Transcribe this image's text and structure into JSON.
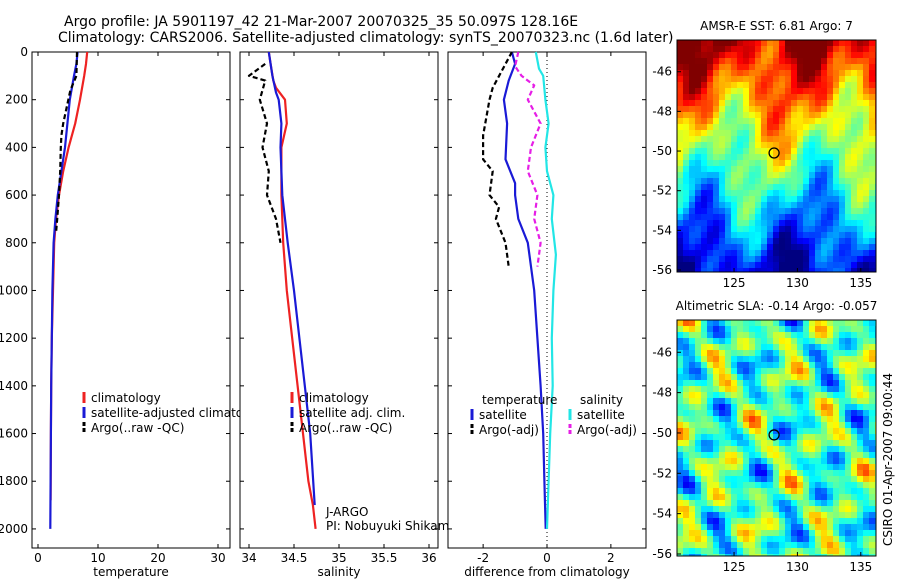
{
  "title_line1": "Argo profile: JA 5901197_42 21-Mar-2007 20070325_35 50.097S 128.16E",
  "title_line2": "Climatology: CARS2006. Satellite-adjusted climatology: synTS_20070323.nc (1.6d later)",
  "credit": "CSIRO 01-Apr-2007 09:00:44",
  "colors": {
    "climatology": "#ee2222",
    "satellite": "#1a1ad6",
    "argo": "#000000",
    "salinity_sat": "#22e6e6",
    "salinity_argo": "#e61ee6"
  },
  "chart_data": [
    {
      "type": "line",
      "xlabel": "temperature",
      "ylabel": "",
      "xlim": [
        -1,
        32
      ],
      "ylim": [
        2080,
        0
      ],
      "y_reversed": true,
      "xticks": [
        0,
        10,
        20,
        30
      ],
      "yticks": [
        0,
        200,
        400,
        600,
        800,
        1000,
        1200,
        1400,
        1600,
        1800,
        2000
      ],
      "legend": [
        "climatology",
        "satellite-adjusted climatology",
        "Argo(..raw -QC)"
      ],
      "series": [
        {
          "name": "climatology",
          "color": "#ee2222",
          "dash": "",
          "x": [
            8.2,
            8.0,
            7.7,
            7.0,
            6.2,
            5.1,
            4.2,
            3.5,
            3.0,
            2.7,
            2.5,
            2.3,
            2.2,
            2.15,
            2.1
          ],
          "y": [
            0,
            50,
            100,
            200,
            300,
            400,
            500,
            600,
            700,
            800,
            1000,
            1200,
            1400,
            1600,
            1880
          ]
        },
        {
          "name": "satellite-adjusted climatology",
          "color": "#1a1ad6",
          "dash": "",
          "x": [
            6.6,
            6.4,
            6.0,
            5.3,
            4.9,
            4.5,
            3.9,
            3.3,
            2.9,
            2.6,
            2.4,
            2.3,
            2.2,
            2.15,
            2.1,
            2.05
          ],
          "y": [
            0,
            50,
            100,
            200,
            300,
            400,
            500,
            600,
            700,
            800,
            1000,
            1200,
            1400,
            1600,
            1800,
            2000
          ]
        },
        {
          "name": "Argo(..raw -QC)",
          "color": "#000000",
          "dash": "5,3",
          "x": [
            6.5,
            6.4,
            5.4,
            4.2,
            3.9,
            3.8,
            3.7,
            3.5,
            3.2,
            3.0
          ],
          "y": [
            0,
            100,
            160,
            300,
            350,
            400,
            500,
            600,
            700,
            760
          ]
        }
      ]
    },
    {
      "type": "line",
      "xlabel": "salinity",
      "ylabel": "",
      "xlim": [
        33.9,
        36.1
      ],
      "ylim": [
        2080,
        0
      ],
      "y_reversed": true,
      "xticks": [
        34,
        34.5,
        35,
        35.5,
        36
      ],
      "yticks": [
        0,
        200,
        400,
        600,
        800,
        1000,
        1200,
        1400,
        1600,
        1800,
        2000
      ],
      "legend": [
        "climatology",
        "satellite adj. clim.",
        "Argo(..raw -QC)"
      ],
      "annotations": [
        "J-ARGO",
        "PI: Nobuyuki Shikama"
      ],
      "series": [
        {
          "name": "climatology",
          "color": "#ee2222",
          "dash": "",
          "x": [
            34.22,
            34.24,
            34.27,
            34.3,
            34.4,
            34.42,
            34.36,
            34.36,
            34.38,
            34.42,
            34.48,
            34.54,
            34.6,
            34.66,
            34.71,
            34.74
          ],
          "y": [
            0,
            50,
            120,
            150,
            200,
            300,
            400,
            600,
            800,
            1000,
            1200,
            1400,
            1600,
            1800,
            1900,
            2000
          ]
        },
        {
          "name": "satellite adj. clim.",
          "color": "#1a1ad6",
          "dash": "",
          "x": [
            34.22,
            34.24,
            34.26,
            34.3,
            34.33,
            34.36,
            34.35,
            34.37,
            34.43,
            34.5,
            34.56,
            34.62,
            34.68,
            34.73
          ],
          "y": [
            0,
            50,
            100,
            170,
            200,
            300,
            400,
            600,
            800,
            1000,
            1200,
            1400,
            1600,
            1900
          ]
        },
        {
          "name": "Argo(..raw -QC)",
          "color": "#000000",
          "dash": "5,3",
          "x": [
            34.18,
            34.0,
            34.18,
            34.12,
            34.2,
            34.15,
            34.22,
            34.2,
            34.3,
            34.35
          ],
          "y": [
            50,
            100,
            120,
            200,
            300,
            400,
            500,
            600,
            700,
            800
          ]
        }
      ]
    },
    {
      "type": "line",
      "xlabel": "difference from climatology",
      "ylabel": "",
      "xlim": [
        -3.1,
        3.1
      ],
      "ylim": [
        2080,
        0
      ],
      "y_reversed": true,
      "xticks": [
        -2,
        0,
        2
      ],
      "yticks": [
        0,
        200,
        400,
        600,
        800,
        1000,
        1200,
        1400,
        1600,
        1800,
        2000
      ],
      "legend": [
        "temperature",
        "satellite",
        "Argo(-adj)",
        "salinity",
        "satellite",
        "Argo(-adj)"
      ],
      "series": [
        {
          "name": "temperature satellite",
          "color": "#1a1ad6",
          "dash": "",
          "x": [
            -1.1,
            -1.0,
            -1.2,
            -1.35,
            -1.25,
            -1.3,
            -1.0,
            -1.0,
            -0.9,
            -0.6,
            -0.5,
            -0.4,
            -0.3,
            -0.2,
            -0.12,
            -0.08,
            -0.04
          ],
          "y": [
            0,
            50,
            120,
            200,
            300,
            450,
            550,
            600,
            700,
            800,
            900,
            1000,
            1200,
            1400,
            1600,
            1800,
            2000
          ]
        },
        {
          "name": "temperature Argo(-adj)",
          "color": "#000000",
          "dash": "5,3",
          "x": [
            -1.1,
            -1.7,
            -1.8,
            -2.0,
            -2.0,
            -1.7,
            -1.8,
            -1.5,
            -1.6,
            -1.3,
            -1.2
          ],
          "y": [
            0,
            150,
            200,
            350,
            450,
            500,
            600,
            650,
            700,
            800,
            900
          ]
        },
        {
          "name": "salinity satellite",
          "color": "#22e6e6",
          "dash": "",
          "x": [
            -0.35,
            -0.25,
            -0.12,
            -0.05,
            0.05,
            -0.05,
            0.0,
            0.2,
            0.15,
            0.28,
            0.2,
            0.15,
            0.18,
            0.1,
            0.05,
            0.0
          ],
          "y": [
            0,
            70,
            100,
            200,
            300,
            400,
            500,
            600,
            700,
            850,
            1000,
            1200,
            1400,
            1600,
            1800,
            2000
          ]
        },
        {
          "name": "salinity Argo(-adj)",
          "color": "#e61ee6",
          "dash": "5,3",
          "x": [
            -0.9,
            -1.0,
            -0.8,
            -0.4,
            -0.6,
            -0.2,
            -0.5,
            -0.6,
            -0.3,
            -0.4,
            -0.2,
            -0.3
          ],
          "y": [
            0,
            60,
            100,
            140,
            200,
            300,
            400,
            500,
            600,
            700,
            800,
            900
          ]
        }
      ]
    },
    {
      "type": "heatmap",
      "title": "AMSR-E SST: 6.81  Argo: 7",
      "xticks": [
        125,
        130,
        135
      ],
      "yticks": [
        -46,
        -48,
        -50,
        -52,
        -54,
        -56
      ],
      "xlim": [
        120.5,
        136.2
      ],
      "ylim": [
        -56.1,
        -44.4
      ],
      "marker": {
        "lon": 128.16,
        "lat": -50.097
      }
    },
    {
      "type": "heatmap",
      "title": "Altimetric SLA: -0.14  Argo: -0.057",
      "xticks": [
        125,
        130,
        135
      ],
      "yticks": [
        -46,
        -48,
        -50,
        -52,
        -54,
        -56
      ],
      "xlim": [
        120.5,
        136.2
      ],
      "ylim": [
        -56.1,
        -44.4
      ],
      "marker": {
        "lon": 128.16,
        "lat": -50.097
      }
    }
  ]
}
